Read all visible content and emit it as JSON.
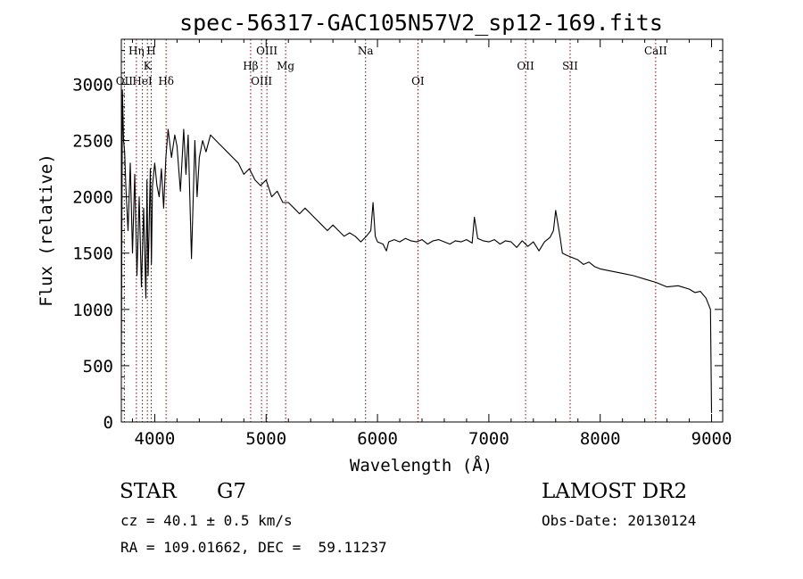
{
  "chart_data": {
    "type": "line",
    "title": "spec-56317-GAC105N57V2_sp12-169.fits",
    "xlabel": "Wavelength (Å)",
    "ylabel": "Flux (relative)",
    "xlim": [
      3700,
      9100
    ],
    "ylim": [
      0,
      3400
    ],
    "xticks": [
      4000,
      5000,
      6000,
      7000,
      8000,
      9000
    ],
    "yticks": [
      0,
      500,
      1000,
      1500,
      2000,
      2500,
      3000
    ],
    "grid": false,
    "line_color": "#000000",
    "marker_color": "#8b0000",
    "series": [
      {
        "x": [
          3700,
          3710,
          3720,
          3730,
          3740,
          3760,
          3780,
          3800,
          3820,
          3840,
          3860,
          3880,
          3900,
          3920,
          3930,
          3940,
          3960,
          3970,
          3980,
          4000,
          4020,
          4040,
          4060,
          4080,
          4100,
          4120,
          4150,
          4180,
          4200,
          4230,
          4260,
          4280,
          4300,
          4330,
          4360,
          4380,
          4400,
          4430,
          4460,
          4500,
          4550,
          4600,
          4650,
          4700,
          4750,
          4800,
          4850,
          4900,
          4950,
          5000,
          5050,
          5100,
          5150,
          5200,
          5250,
          5300,
          5350,
          5400,
          5450,
          5500,
          5550,
          5600,
          5650,
          5700,
          5750,
          5800,
          5850,
          5900,
          5940,
          5960,
          5980,
          6000,
          6050,
          6080,
          6100,
          6150,
          6200,
          6250,
          6300,
          6350,
          6400,
          6450,
          6500,
          6550,
          6600,
          6650,
          6700,
          6750,
          6800,
          6850,
          6870,
          6900,
          6950,
          7000,
          7050,
          7100,
          7150,
          7200,
          7250,
          7300,
          7350,
          7400,
          7450,
          7500,
          7550,
          7580,
          7600,
          7620,
          7640,
          7660,
          7700,
          7750,
          7800,
          7850,
          7900,
          7950,
          8000,
          8100,
          8200,
          8300,
          8400,
          8500,
          8600,
          8700,
          8800,
          8850,
          8900,
          8950,
          8990,
          9000
        ],
        "y": [
          500,
          2950,
          2500,
          2400,
          2100,
          1700,
          2300,
          1500,
          2200,
          1300,
          2000,
          1200,
          1900,
          1100,
          2150,
          1300,
          2250,
          1400,
          2100,
          2300,
          2100,
          2000,
          2250,
          1900,
          2350,
          2600,
          2350,
          2550,
          2450,
          2050,
          2600,
          2200,
          2550,
          1450,
          2500,
          2000,
          2350,
          2500,
          2400,
          2550,
          2500,
          2450,
          2400,
          2350,
          2300,
          2200,
          2250,
          2150,
          2100,
          2150,
          2000,
          2050,
          1950,
          1950,
          1900,
          1850,
          1900,
          1850,
          1800,
          1750,
          1700,
          1750,
          1700,
          1650,
          1680,
          1650,
          1600,
          1650,
          1700,
          1950,
          1650,
          1600,
          1580,
          1520,
          1600,
          1620,
          1600,
          1630,
          1610,
          1600,
          1620,
          1580,
          1610,
          1620,
          1600,
          1580,
          1610,
          1600,
          1620,
          1590,
          1820,
          1630,
          1610,
          1600,
          1620,
          1580,
          1610,
          1600,
          1550,
          1610,
          1560,
          1600,
          1520,
          1600,
          1640,
          1700,
          1880,
          1760,
          1640,
          1500,
          1480,
          1460,
          1440,
          1400,
          1420,
          1380,
          1360,
          1340,
          1320,
          1300,
          1270,
          1240,
          1200,
          1210,
          1180,
          1150,
          1160,
          1100,
          1000,
          80
        ]
      }
    ],
    "line_markers": [
      {
        "label": "OII",
        "x": 3727,
        "row": 3
      },
      {
        "label": "Hη",
        "x": 3835,
        "row": 1
      },
      {
        "label": "HeI",
        "x": 3889,
        "row": 3
      },
      {
        "label": "K",
        "x": 3934,
        "row": 2
      },
      {
        "label": "H",
        "x": 3968,
        "row": 1
      },
      {
        "label": "Hδ",
        "x": 4102,
        "row": 3
      },
      {
        "label": "Hβ",
        "x": 4861,
        "row": 2
      },
      {
        "label": "OIII",
        "x": 4959,
        "row": 3
      },
      {
        "label": "OIII",
        "x": 5007,
        "row": 1
      },
      {
        "label": "Mg",
        "x": 5175,
        "row": 2
      },
      {
        "label": "Na",
        "x": 5893,
        "row": 1
      },
      {
        "label": "OI",
        "x": 6363,
        "row": 3
      },
      {
        "label": "OII",
        "x": 7330,
        "row": 2
      },
      {
        "label": "SII",
        "x": 7730,
        "row": 2
      },
      {
        "label": "CaII",
        "x": 8498,
        "row": 1
      }
    ],
    "line_markers_corrected": true
  },
  "info": {
    "object_class": "STAR",
    "subclass": "G7",
    "survey": "LAMOST DR2",
    "redshift": "cz = 40.1 ± 0.5 km/s",
    "obs_date": "Obs-Date: 20130124",
    "coords": "RA = 109.01662, DEC =  59.11237"
  }
}
